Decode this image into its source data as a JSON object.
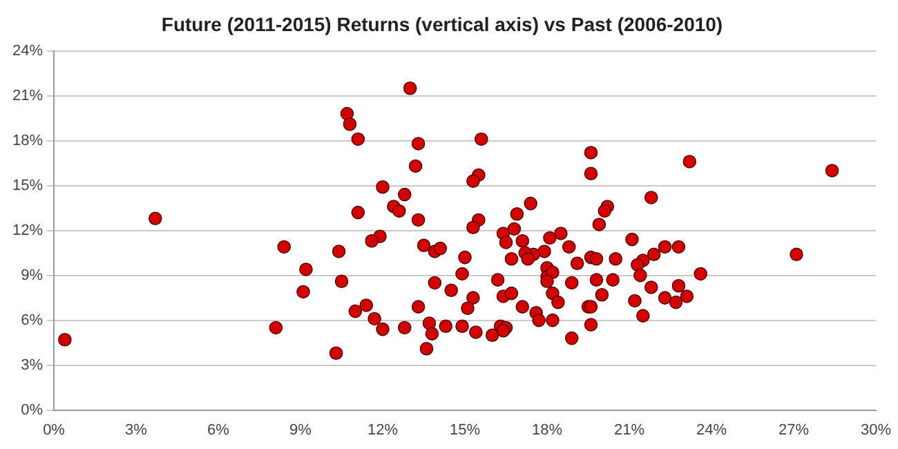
{
  "chart_data": {
    "type": "scatter",
    "title": "Future (2011-2015) Returns (vertical axis) vs Past (2006-2010)",
    "xlim": [
      0,
      30
    ],
    "xticks": [
      {
        "value": 0,
        "label": "0%"
      },
      {
        "value": 3,
        "label": "3%"
      },
      {
        "value": 6,
        "label": "6%"
      },
      {
        "value": 9,
        "label": "9%"
      },
      {
        "value": 12,
        "label": "12%"
      },
      {
        "value": 15,
        "label": "15%"
      },
      {
        "value": 18,
        "label": "18%"
      },
      {
        "value": 21,
        "label": "21%"
      },
      {
        "value": 24,
        "label": "24%"
      },
      {
        "value": 27,
        "label": "27%"
      },
      {
        "value": 30,
        "label": "30%"
      }
    ],
    "ylim": [
      0,
      24
    ],
    "yticks": [
      {
        "value": 0,
        "label": "0%"
      },
      {
        "value": 3,
        "label": "3%"
      },
      {
        "value": 6,
        "label": "6%"
      },
      {
        "value": 9,
        "label": "9%"
      },
      {
        "value": 12,
        "label": "12%"
      },
      {
        "value": 15,
        "label": "15%"
      },
      {
        "value": 18,
        "label": "18%"
      },
      {
        "value": 21,
        "label": "21%"
      },
      {
        "value": 24,
        "label": "24%"
      }
    ],
    "grid": "y",
    "legend": false,
    "marker": "circle",
    "series": [
      {
        "color": "#d40000",
        "x": [
          0.4,
          3.7,
          8.4,
          9.2,
          9.1,
          8.1,
          13.0,
          10.7,
          10.8,
          11.1,
          13.3,
          15.6,
          13.2,
          15.5,
          15.3,
          12.0,
          12.8,
          12.4,
          12.6,
          11.1,
          13.3,
          15.5,
          15.3,
          11.9,
          11.6,
          13.5,
          13.9,
          14.1,
          10.4,
          15.0,
          14.9,
          16.4,
          16.5,
          16.8,
          16.9,
          17.1,
          16.7,
          17.4,
          10.5,
          13.9,
          14.5,
          16.2,
          16.4,
          16.7,
          15.3,
          15.1,
          17.1,
          13.3,
          11.4,
          11.0,
          11.7,
          12.0,
          12.8,
          13.7,
          13.8,
          14.3,
          14.9,
          15.4,
          16.0,
          16.3,
          16.5,
          16.4,
          13.6,
          10.3,
          19.6,
          19.6,
          23.2,
          28.4,
          21.8,
          20.2,
          20.1,
          19.9,
          18.5,
          18.1,
          18.8,
          17.9,
          17.5,
          17.2,
          17.3,
          19.1,
          19.6,
          19.8,
          20.5,
          21.1,
          21.9,
          22.3,
          22.8,
          21.5,
          21.3,
          21.4,
          23.6,
          27.1,
          18.0,
          18.0,
          18.2,
          18.0,
          18.9,
          19.8,
          20.4,
          18.2,
          18.4,
          20.0,
          21.8,
          22.8,
          22.3,
          22.7,
          23.1,
          21.2,
          17.6,
          17.7,
          18.2,
          19.5,
          19.6,
          19.6,
          21.5,
          18.9
        ],
        "values": [
          4.7,
          12.8,
          10.9,
          9.4,
          7.9,
          5.5,
          21.5,
          19.8,
          19.1,
          18.1,
          17.8,
          18.1,
          16.3,
          15.7,
          15.3,
          14.9,
          14.4,
          13.6,
          13.3,
          13.2,
          12.7,
          12.7,
          12.2,
          11.6,
          11.3,
          11.0,
          10.6,
          10.8,
          10.6,
          10.2,
          9.1,
          11.8,
          11.2,
          12.1,
          13.1,
          11.3,
          10.1,
          13.8,
          8.6,
          8.5,
          8.0,
          8.7,
          7.6,
          7.8,
          7.5,
          6.8,
          6.9,
          6.9,
          7.0,
          6.6,
          6.1,
          5.4,
          5.5,
          5.8,
          5.1,
          5.6,
          5.6,
          5.2,
          5.0,
          5.6,
          5.5,
          5.3,
          4.1,
          3.8,
          17.2,
          15.8,
          16.6,
          16.0,
          14.2,
          13.6,
          13.3,
          12.4,
          11.8,
          11.5,
          10.9,
          10.6,
          10.4,
          10.5,
          10.1,
          9.8,
          10.2,
          10.1,
          10.1,
          11.4,
          10.4,
          10.9,
          10.9,
          10.0,
          9.7,
          9.0,
          9.1,
          10.4,
          9.5,
          8.9,
          9.2,
          8.6,
          8.5,
          8.7,
          8.7,
          7.8,
          7.2,
          7.7,
          8.2,
          8.3,
          7.5,
          7.2,
          7.6,
          7.3,
          6.5,
          6.0,
          6.0,
          6.9,
          6.9,
          5.7,
          6.3,
          4.8
        ]
      }
    ]
  }
}
